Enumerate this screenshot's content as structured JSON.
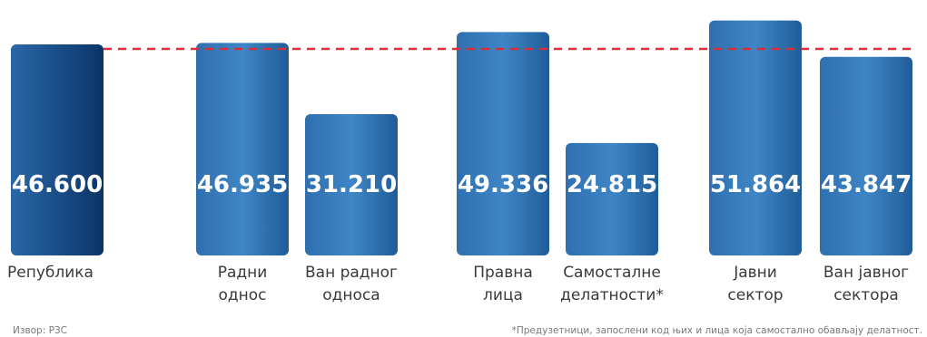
{
  "chart_data": {
    "type": "bar",
    "categories": [
      [
        "Република"
      ],
      [
        "Радни",
        "однос"
      ],
      [
        "Ван радног",
        "односа"
      ],
      [
        "Правна",
        "лица"
      ],
      [
        "Самосталне",
        "делатности*"
      ],
      [
        "Јавни",
        "сектор"
      ],
      [
        "Ван јавног",
        "сектора"
      ]
    ],
    "values": [
      46600,
      46935,
      31210,
      49336,
      24815,
      51864,
      43847
    ],
    "value_labels": [
      "46.600",
      "46.935",
      "31.210",
      "49.336",
      "24.815",
      "51.864",
      "43.847"
    ],
    "groups": [
      [
        0
      ],
      [
        1,
        2
      ],
      [
        3,
        4
      ],
      [
        5,
        6
      ]
    ],
    "reference_line": {
      "value": 46600,
      "style": "dashed",
      "color": "#d0323c"
    },
    "ylim": [
      0,
      54000
    ],
    "grid": false,
    "colors": {
      "first_bar": "#0b3a6e",
      "bar_light": "#3f86c6",
      "bar_dark": "#1f5d99",
      "label": "#ffffff"
    }
  },
  "footer": {
    "source": "Извор: РЗС",
    "footnote": "*Предузетници, запослени код њих и лица која самостално обављају делатност."
  }
}
